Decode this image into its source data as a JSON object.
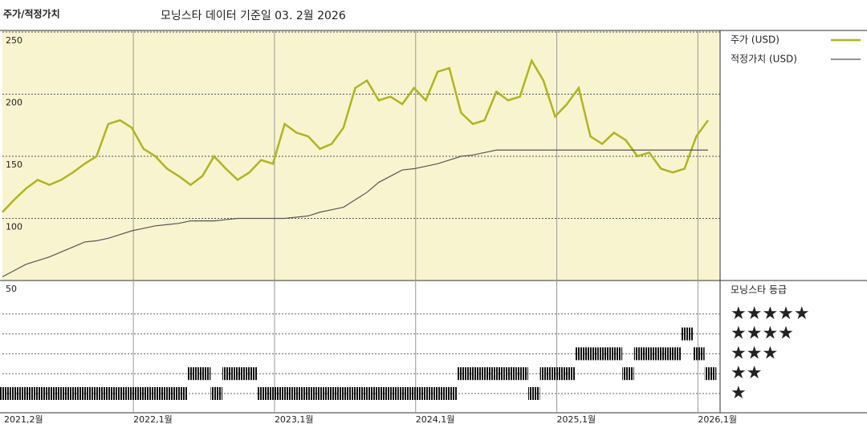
{
  "chart_data": {
    "type": "line",
    "panel_label": "주가/적정가치",
    "title": "모닝스타 데이터 기준일 03. 2월 2026",
    "x": [
      "2021-02",
      "2021-03",
      "2021-04",
      "2021-05",
      "2021-06",
      "2021-07",
      "2021-08",
      "2021-09",
      "2021-10",
      "2021-11",
      "2021-12",
      "2022-01",
      "2022-02",
      "2022-03",
      "2022-04",
      "2022-05",
      "2022-06",
      "2022-07",
      "2022-08",
      "2022-09",
      "2022-10",
      "2022-11",
      "2022-12",
      "2023-01",
      "2023-02",
      "2023-03",
      "2023-04",
      "2023-05",
      "2023-06",
      "2023-07",
      "2023-08",
      "2023-09",
      "2023-10",
      "2023-11",
      "2023-12",
      "2024-01",
      "2024-02",
      "2024-03",
      "2024-04",
      "2024-05",
      "2024-06",
      "2024-07",
      "2024-08",
      "2024-09",
      "2024-10",
      "2024-11",
      "2024-12",
      "2025-01",
      "2025-02",
      "2025-03",
      "2025-04",
      "2025-05",
      "2025-06",
      "2025-07",
      "2025-08",
      "2025-09",
      "2025-10",
      "2025-11",
      "2025-12",
      "2026-01",
      "2026-02"
    ],
    "xticks": [
      {
        "value": "2021-02",
        "label": "2021,2월"
      },
      {
        "value": "2022-01",
        "label": "2022,1월"
      },
      {
        "value": "2023-01",
        "label": "2023,1월"
      },
      {
        "value": "2024-01",
        "label": "2024,1월"
      },
      {
        "value": "2025-01",
        "label": "2025,1월"
      },
      {
        "value": "2026-01",
        "label": "2026,1월"
      }
    ],
    "series": [
      {
        "name": "주가 (USD)",
        "color": "#b0b41e",
        "values": [
          105,
          115,
          124,
          131,
          127,
          131,
          137,
          144,
          150,
          176,
          179,
          173,
          156,
          150,
          140,
          134,
          127,
          134,
          150,
          140,
          131,
          137,
          147,
          144,
          176,
          169,
          166,
          156,
          160,
          173,
          205,
          211,
          195,
          198,
          192,
          205,
          195,
          218,
          221,
          185,
          176,
          179,
          202,
          195,
          198,
          227,
          211,
          182,
          192,
          205,
          166,
          160,
          169,
          163,
          150,
          153,
          140,
          137,
          140,
          166,
          179
        ]
      },
      {
        "name": "적정가치 (USD)",
        "color": "#555555",
        "values": [
          53,
          58,
          63,
          66,
          69,
          73,
          77,
          81,
          82,
          84,
          87,
          90,
          92,
          94,
          95,
          96,
          98,
          98,
          98,
          99,
          100,
          100,
          100,
          100,
          100,
          101,
          102,
          105,
          107,
          109,
          115,
          121,
          129,
          134,
          139,
          140,
          142,
          144,
          147,
          150,
          151,
          153,
          155,
          155,
          155,
          155,
          155,
          155,
          155,
          155,
          155,
          155,
          155,
          155,
          155,
          155,
          155,
          155,
          155,
          155,
          155
        ]
      }
    ],
    "ylim": [
      50,
      250
    ],
    "yticks": [
      50,
      100,
      150,
      200,
      250
    ],
    "grid": true,
    "rating": {
      "title": "모닝스타 등급",
      "levels": [
        "★",
        "★★",
        "★★★",
        "★★★★",
        "★★★★★"
      ],
      "values": [
        1,
        1,
        1,
        1,
        1,
        1,
        1,
        1,
        1,
        1,
        1,
        1,
        1,
        1,
        1,
        1,
        2,
        2,
        1,
        2,
        2,
        2,
        1,
        1,
        1,
        1,
        1,
        1,
        1,
        1,
        1,
        1,
        1,
        1,
        1,
        1,
        1,
        1,
        1,
        2,
        2,
        2,
        2,
        2,
        2,
        1,
        2,
        2,
        2,
        3,
        3,
        3,
        3,
        2,
        3,
        3,
        3,
        3,
        4,
        3,
        2
      ]
    }
  }
}
